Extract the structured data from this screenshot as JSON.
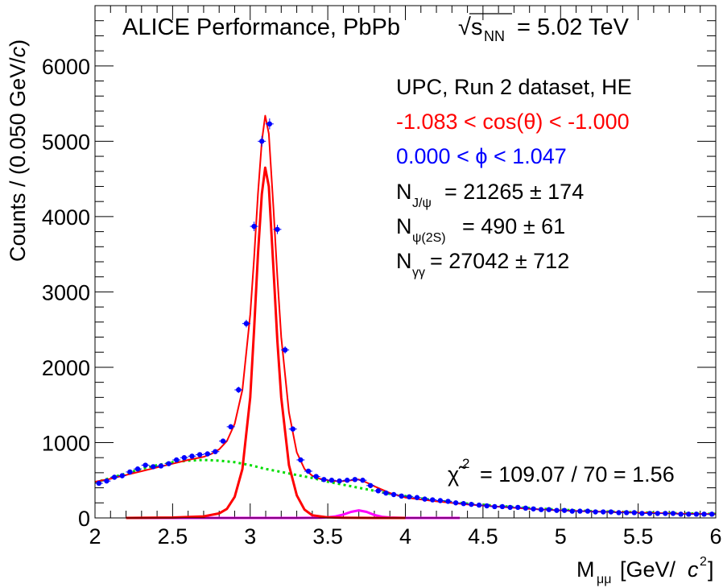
{
  "chart_data": {
    "type": "scatter",
    "title": "ALICE Performance, PbPb",
    "energy_label": {
      "sqrt": "√",
      "s": "s",
      "s_sub": "NN",
      "value": "= 5.02 TeV"
    },
    "xlabel": {
      "main": "M",
      "sub": "μμ",
      "unit_open": "[GeV/",
      "unit_c": "c",
      "unit_sup": "2",
      "unit_close": "]"
    },
    "ylabel": {
      "main": "Counts / (0.050 GeV/",
      "c": "c",
      "close": ")"
    },
    "xlim": [
      2,
      6
    ],
    "ylim": [
      0,
      6800
    ],
    "x_ticks": [
      "2",
      "2.5",
      "3",
      "3.5",
      "4",
      "4.5",
      "5",
      "5.5",
      "6"
    ],
    "y_ticks": [
      "0",
      "1000",
      "2000",
      "3000",
      "4000",
      "5000",
      "6000"
    ],
    "annotations": {
      "dataset": "UPC, Run 2 dataset, HE",
      "cos_cut": "-1.083 < cos(θ) < -1.000",
      "phi_cut": "0.000 < ϕ < 1.047",
      "njpsi": {
        "main": "N",
        "sub": "J/ψ",
        "value": "= 21265 ± 174"
      },
      "npsi2s": {
        "main": "N",
        "sub": "ψ(2S)",
        "value": "= 490 ± 61"
      },
      "ngg": {
        "main": "N",
        "sub": "γγ",
        "value": "= 27042 ± 712"
      },
      "chi2": {
        "symbol": "χ̃",
        "sup": "2",
        "value": "= 109.07 / 70 = 1.56"
      }
    },
    "colors": {
      "data": "#0000ff",
      "total_fit": "#ff0000",
      "jpsi": "#ff0000",
      "background": "#00dd00",
      "psi2s": "#ff00ff",
      "cos_text": "#ff0000",
      "phi_text": "#0000ff"
    },
    "series": [
      {
        "type": "points",
        "x": [
          2.025,
          2.075,
          2.125,
          2.175,
          2.225,
          2.275,
          2.325,
          2.375,
          2.425,
          2.475,
          2.525,
          2.575,
          2.625,
          2.675,
          2.725,
          2.775,
          2.825,
          2.875,
          2.925,
          2.975,
          3.025,
          3.075,
          3.125,
          3.175,
          3.225,
          3.275,
          3.325,
          3.375,
          3.425,
          3.475,
          3.525,
          3.575,
          3.625,
          3.675,
          3.725,
          3.775,
          3.825,
          3.875,
          3.925,
          3.975,
          4.025,
          4.075,
          4.125,
          4.175,
          4.225,
          4.275,
          4.325,
          4.375,
          4.425,
          4.475,
          4.525,
          4.575,
          4.625,
          4.675,
          4.725,
          4.775,
          4.825,
          4.875,
          4.925,
          4.975,
          5.025,
          5.075,
          5.125,
          5.175,
          5.225,
          5.275,
          5.325,
          5.375,
          5.425,
          5.475,
          5.525,
          5.575,
          5.625,
          5.675,
          5.725,
          5.775,
          5.825,
          5.875,
          5.925,
          5.975
        ],
        "values": [
          460,
          490,
          540,
          560,
          610,
          650,
          700,
          680,
          690,
          720,
          770,
          800,
          820,
          840,
          850,
          880,
          1020,
          1210,
          1700,
          2580,
          3870,
          5000,
          5230,
          3830,
          2230,
          1180,
          770,
          620,
          550,
          510,
          500,
          490,
          500,
          510,
          500,
          430,
          360,
          330,
          310,
          290,
          280,
          270,
          250,
          240,
          230,
          220,
          200,
          190,
          180,
          170,
          160,
          150,
          150,
          140,
          140,
          130,
          120,
          110,
          110,
          100,
          100,
          90,
          90,
          90,
          80,
          80,
          80,
          70,
          70,
          70,
          60,
          60,
          60,
          60,
          60,
          50,
          50,
          50,
          50,
          50
        ]
      },
      {
        "type": "line",
        "name": "total_fit",
        "x": [
          2.0,
          2.1,
          2.2,
          2.3,
          2.4,
          2.5,
          2.6,
          2.7,
          2.75,
          2.8,
          2.85,
          2.9,
          2.95,
          3.0,
          3.025,
          3.05,
          3.075,
          3.097,
          3.12,
          3.15,
          3.175,
          3.2,
          3.25,
          3.3,
          3.35,
          3.4,
          3.45,
          3.5,
          3.55,
          3.6,
          3.65,
          3.7,
          3.75,
          3.8,
          3.9,
          4.0,
          4.2,
          4.4,
          4.6,
          4.8,
          5.0,
          5.2,
          5.4,
          5.6,
          5.8,
          6.0
        ],
        "values": [
          480,
          520,
          570,
          620,
          670,
          720,
          770,
          810,
          850,
          910,
          1020,
          1250,
          1700,
          2700,
          3450,
          4300,
          5000,
          5340,
          5100,
          4100,
          3200,
          2400,
          1400,
          870,
          650,
          560,
          520,
          500,
          490,
          490,
          500,
          510,
          470,
          420,
          330,
          270,
          220,
          180,
          150,
          120,
          100,
          85,
          75,
          65,
          55,
          50
        ]
      },
      {
        "type": "line",
        "name": "background",
        "x": [
          2.0,
          2.1,
          2.2,
          2.3,
          2.4,
          2.5,
          2.6,
          2.7,
          2.8,
          2.9,
          3.0,
          3.1,
          3.2,
          3.3,
          3.4,
          3.5,
          3.6,
          3.7,
          3.8,
          3.9,
          4.0,
          4.2,
          4.4,
          4.6,
          4.8,
          5.0,
          5.2,
          5.4,
          5.6,
          5.8,
          6.0
        ],
        "values": [
          470,
          530,
          590,
          650,
          700,
          740,
          760,
          770,
          760,
          740,
          700,
          650,
          610,
          570,
          530,
          480,
          440,
          400,
          360,
          320,
          290,
          230,
          190,
          160,
          130,
          110,
          90,
          80,
          70,
          60,
          55
        ]
      },
      {
        "type": "line",
        "name": "jpsi",
        "x": [
          2.2,
          2.5,
          2.7,
          2.8,
          2.85,
          2.9,
          2.95,
          3.0,
          3.025,
          3.05,
          3.075,
          3.097,
          3.12,
          3.15,
          3.175,
          3.2,
          3.25,
          3.3,
          3.35,
          3.4,
          3.5,
          3.6,
          3.8,
          4.0
        ],
        "values": [
          0,
          5,
          20,
          60,
          120,
          280,
          650,
          1600,
          2500,
          3500,
          4300,
          4650,
          4400,
          3300,
          2350,
          1600,
          700,
          300,
          110,
          35,
          8,
          2,
          0,
          0
        ]
      },
      {
        "type": "line",
        "name": "psi2s",
        "x": [
          2.2,
          3.3,
          3.45,
          3.5,
          3.55,
          3.6,
          3.65,
          3.7,
          3.75,
          3.8,
          3.85,
          3.9,
          4.0,
          4.35
        ],
        "values": [
          0,
          0,
          2,
          8,
          20,
          45,
          80,
          100,
          80,
          40,
          15,
          5,
          0,
          0
        ]
      }
    ]
  }
}
